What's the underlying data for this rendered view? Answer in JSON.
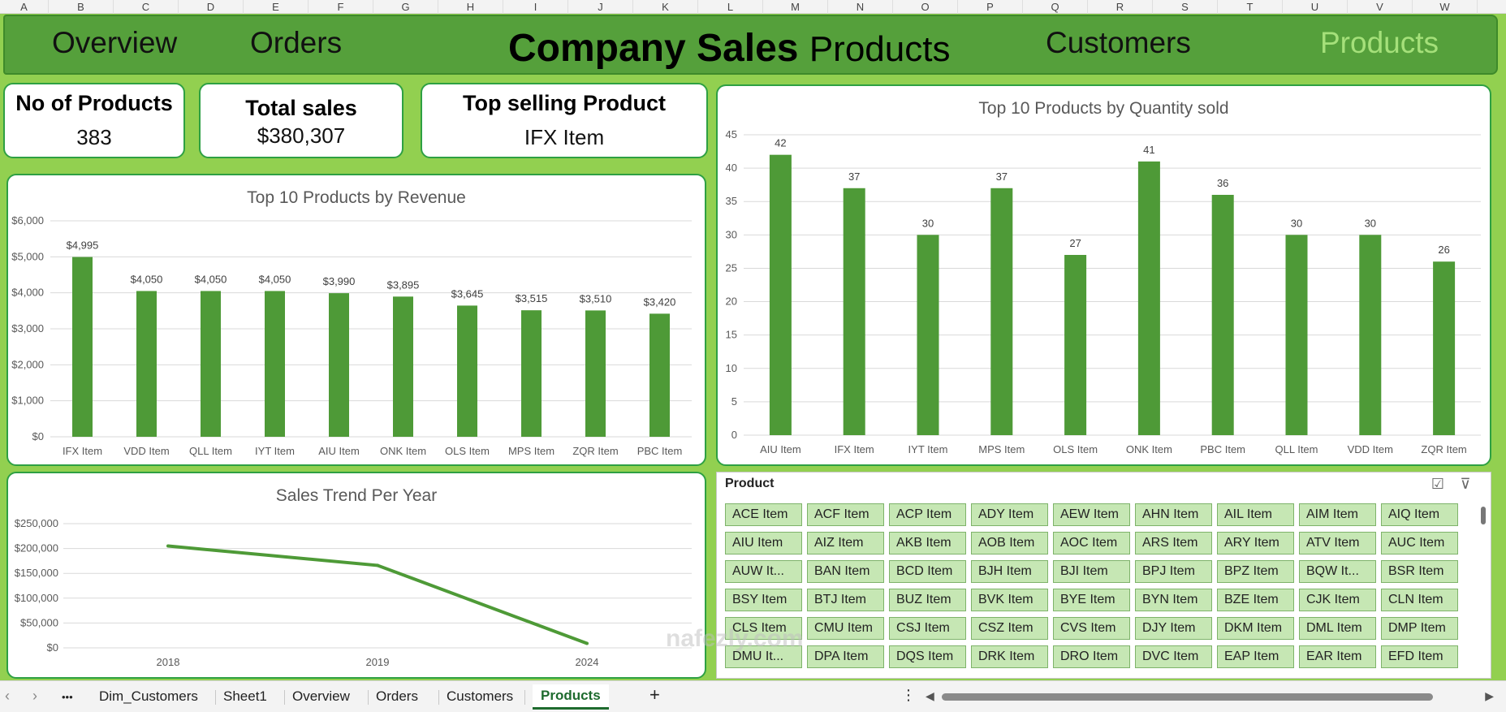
{
  "columns": [
    "A",
    "B",
    "C",
    "D",
    "E",
    "F",
    "G",
    "H",
    "I",
    "J",
    "K",
    "L",
    "M",
    "N",
    "O",
    "P",
    "Q",
    "R",
    "S",
    "T",
    "U",
    "V",
    "W"
  ],
  "nav": {
    "overview": "Overview",
    "orders": "Orders",
    "title_bold": "Company Sales",
    "title_sub": "Products",
    "customers": "Customers",
    "products": "Products"
  },
  "kpis": {
    "products": {
      "label": "No of Products",
      "value": "383"
    },
    "sales": {
      "label": "Total sales",
      "value": "$380,307"
    },
    "top": {
      "label": "Top selling Product",
      "value": "IFX Item"
    }
  },
  "revenue_chart": {
    "title": "Top 10 Products by Revenue"
  },
  "quantity_chart": {
    "title": "Top 10 Products by Quantity sold"
  },
  "trend_chart": {
    "title": "Sales Trend Per Year"
  },
  "chart_data": [
    {
      "type": "bar",
      "title": "Top 10 Products by Revenue",
      "categories": [
        "IFX Item",
        "VDD Item",
        "QLL Item",
        "IYT Item",
        "AIU Item",
        "ONK Item",
        "OLS Item",
        "MPS Item",
        "ZQR Item",
        "PBC Item"
      ],
      "values": [
        4995,
        4050,
        4050,
        4050,
        3990,
        3895,
        3645,
        3515,
        3510,
        3420
      ],
      "data_labels": [
        "$4,995",
        "$4,050",
        "$4,050",
        "$4,050",
        "$3,990",
        "$3,895",
        "$3,645",
        "$3,515",
        "$3,510",
        "$3,420"
      ],
      "y_ticks": [
        "$0",
        "$1,000",
        "$2,000",
        "$3,000",
        "$4,000",
        "$5,000",
        "$6,000"
      ],
      "ylim": [
        0,
        6000
      ],
      "color": "#4e9a37",
      "grid": true
    },
    {
      "type": "bar",
      "title": "Top 10 Products by Quantity sold",
      "categories": [
        "AIU Item",
        "IFX Item",
        "IYT Item",
        "MPS Item",
        "OLS Item",
        "ONK Item",
        "PBC Item",
        "QLL Item",
        "VDD Item",
        "ZQR Item"
      ],
      "values": [
        42,
        37,
        30,
        37,
        27,
        41,
        36,
        30,
        30,
        26
      ],
      "y_ticks": [
        "0",
        "5",
        "10",
        "15",
        "20",
        "25",
        "30",
        "35",
        "40",
        "45"
      ],
      "ylim": [
        0,
        45
      ],
      "color": "#4e9a37",
      "grid": true
    },
    {
      "type": "line",
      "title": "Sales Trend Per Year",
      "categories": [
        "2018",
        "2019",
        "2024"
      ],
      "values": [
        205000,
        166000,
        9000
      ],
      "y_ticks": [
        "$0",
        "$50,000",
        "$100,000",
        "$150,000",
        "$200,000",
        "$250,000"
      ],
      "ylim": [
        0,
        250000
      ],
      "color": "#4e9a37",
      "grid": true
    }
  ],
  "slicer": {
    "title": "Product",
    "multiselect_icon": "multi-select-icon",
    "clear_icon": "clear-filter-icon",
    "items": [
      "ACE Item",
      "ACF Item",
      "ACP Item",
      "ADY Item",
      "AEW Item",
      "AHN Item",
      "AIL Item",
      "AIM Item",
      "AIQ Item",
      "AIU Item",
      "AIZ Item",
      "AKB Item",
      "AOB Item",
      "AOC Item",
      "ARS Item",
      "ARY Item",
      "ATV Item",
      "AUC Item",
      "AUW It...",
      "BAN Item",
      "BCD Item",
      "BJH Item",
      "BJI Item",
      "BPJ Item",
      "BPZ Item",
      "BQW It...",
      "BSR Item",
      "BSY Item",
      "BTJ Item",
      "BUZ Item",
      "BVK Item",
      "BYE Item",
      "BYN Item",
      "BZE Item",
      "CJK Item",
      "CLN Item",
      "CLS Item",
      "CMU Item",
      "CSJ Item",
      "CSZ Item",
      "CVS Item",
      "DJY Item",
      "DKM Item",
      "DML Item",
      "DMP Item",
      "DMU It...",
      "DPA Item",
      "DQS Item",
      "DRK Item",
      "DRO Item",
      "DVC Item",
      "EAP Item",
      "EAR Item",
      "EFD Item"
    ]
  },
  "tabs": {
    "items": [
      "Dim_Customers",
      "Sheet1",
      "Overview",
      "Orders",
      "Customers",
      "Products"
    ],
    "active": "Products",
    "add": "+",
    "more": "⋮",
    "ellipsis": "•••"
  },
  "watermark": "nafezly.com"
}
